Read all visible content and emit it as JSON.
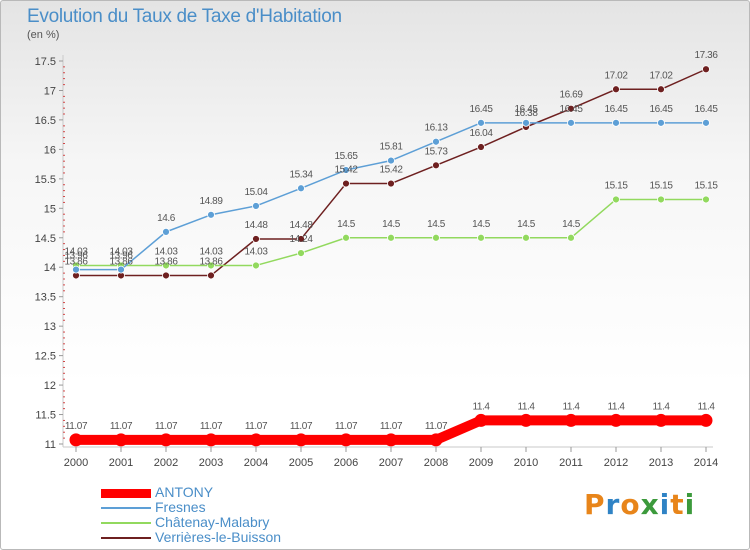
{
  "header": {
    "title": "Evolution du Taux de Taxe d'Habitation",
    "unit": "(en %)"
  },
  "logo": {
    "text": "Proxiti",
    "colors": [
      "#e8851a",
      "#2f83c5",
      "#e8851a",
      "#3c9a3c",
      "#2f83c5",
      "#e8851a",
      "#3c9a3c"
    ]
  },
  "chart_data": {
    "type": "line",
    "title": "Evolution du Taux de Taxe d'Habitation",
    "ylabel": "(en %)",
    "xlabel": "",
    "x": [
      2000,
      2001,
      2002,
      2003,
      2004,
      2005,
      2006,
      2007,
      2008,
      2009,
      2010,
      2011,
      2012,
      2013,
      2014
    ],
    "ylim": [
      11,
      17.5
    ],
    "yticks": [
      11,
      11.5,
      12,
      12.5,
      13,
      13.5,
      14,
      14.5,
      15,
      15.5,
      16,
      16.5,
      17,
      17.5
    ],
    "grid": false,
    "legend_position": "bottom-left",
    "series": [
      {
        "name": "ANTONY",
        "color": "#ff0000",
        "values": [
          11.07,
          11.07,
          11.07,
          11.07,
          11.07,
          11.07,
          11.07,
          11.07,
          11.07,
          11.4,
          11.4,
          11.4,
          11.4,
          11.4,
          11.4
        ],
        "labels": [
          "11.07",
          "11.07",
          "11.07",
          "11.07",
          "11.07",
          "11.07",
          "11.07",
          "11.07",
          "11.07",
          "11.4",
          "11.4",
          "11.4",
          "11.4",
          "11.4",
          "11.4"
        ]
      },
      {
        "name": "Fresnes",
        "color": "#5d9fd6",
        "values": [
          13.96,
          13.96,
          14.6,
          14.89,
          15.04,
          15.34,
          15.65,
          15.81,
          16.13,
          16.45,
          16.45,
          16.45,
          16.45,
          16.45,
          16.45
        ],
        "labels": [
          "13.96",
          "13.96",
          "14.6",
          "14.89",
          "15.04",
          "15.34",
          "15.65",
          "15.81",
          "16.13",
          "16.45",
          "16.45",
          "16.45",
          "16.45",
          "16.45",
          "16.45"
        ]
      },
      {
        "name": "Châtenay-Malabry",
        "color": "#92d95e",
        "values": [
          14.03,
          14.03,
          14.03,
          14.03,
          14.03,
          14.24,
          14.5,
          14.5,
          14.5,
          14.5,
          14.5,
          14.5,
          15.15,
          15.15,
          15.15
        ],
        "labels": [
          "14.03",
          "14.03",
          "14.03",
          "14.03",
          "14.03",
          "14.24",
          "14.5",
          "14.5",
          "14.5",
          "14.5",
          "14.5",
          "14.5",
          "15.15",
          "15.15",
          "15.15"
        ]
      },
      {
        "name": "Verrières-le-Buisson",
        "color": "#6e2020",
        "values": [
          13.86,
          13.86,
          13.86,
          13.86,
          14.48,
          14.48,
          15.42,
          15.42,
          15.73,
          16.04,
          16.38,
          16.69,
          17.02,
          17.02,
          17.36
        ],
        "labels": [
          "13.86",
          "13.86",
          "13.86",
          "13.86",
          "14.48",
          "14.48",
          "15.42",
          "15.42",
          "15.73",
          "16.04",
          "16.38",
          "16.69",
          "17.02",
          "17.02",
          "17.36"
        ]
      }
    ]
  }
}
